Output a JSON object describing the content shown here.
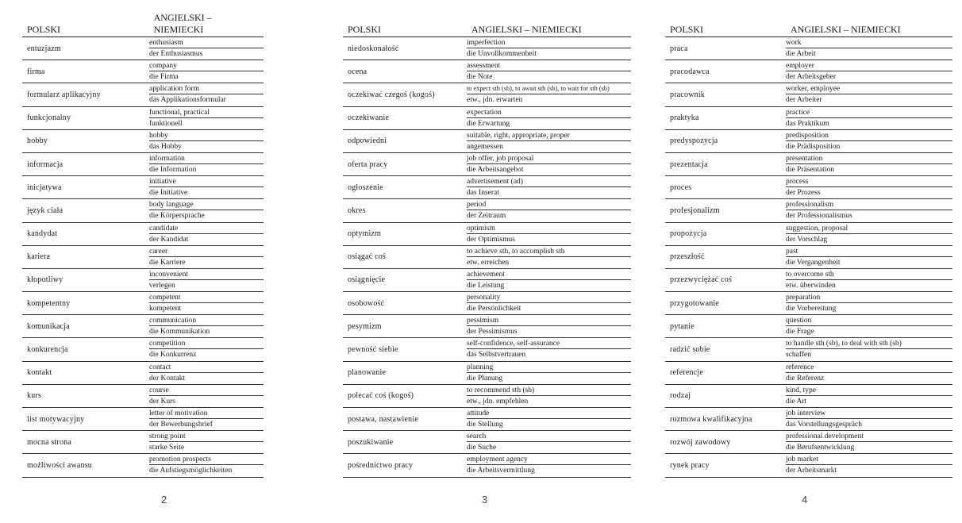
{
  "header": {
    "col1": "POLSKI",
    "col2": "ANGIELSKI – NIEMIECKI"
  },
  "pages": [
    {
      "number": "2",
      "entries": [
        [
          "entuzjazm",
          "enthusiasm",
          "der Enthusiasmus"
        ],
        [
          "firma",
          "company",
          "die Firma"
        ],
        [
          "formularz aplikacyjny",
          "application form",
          "das Applikationsformular"
        ],
        [
          "funkcjonalny",
          "functional, practical",
          "funktionell"
        ],
        [
          "hobby",
          "hobby",
          "das Hobby"
        ],
        [
          "informacja",
          "information",
          "die Information"
        ],
        [
          "inicjatywa",
          "initiative",
          "die Initiative"
        ],
        [
          "język ciała",
          "body language",
          "die Körpersprache"
        ],
        [
          "kandydat",
          "candidate",
          "der Kandidat"
        ],
        [
          "kariera",
          "career",
          "die Karriere"
        ],
        [
          "kłopotliwy",
          "inconvenient",
          "verlegen"
        ],
        [
          "kompetentny",
          "competent",
          "kompetent"
        ],
        [
          "komunikacja",
          "communication",
          "die Kommunikation"
        ],
        [
          "konkurencja",
          "competition",
          "die Konkurrenz"
        ],
        [
          "kontakt",
          "contact",
          "der Kontakt"
        ],
        [
          "kurs",
          "course",
          "der Kurs"
        ],
        [
          "list motywacyjny",
          "letter of motivation",
          "der Bewerbungsbrief"
        ],
        [
          "mocna strona",
          "strong point",
          "starke Seite"
        ],
        [
          "możliwości awansu",
          "promotion prospects",
          "die Aufstiegsmöglichkeiten"
        ]
      ]
    },
    {
      "number": "3",
      "entries": [
        [
          "niedoskonałość",
          "imperfection",
          "die Unvollkommenheit"
        ],
        [
          "ocena",
          "assessment",
          "die Note"
        ],
        [
          "oczekiwać czegoś (kogoś)",
          "to expect sth (sb), to await sth (sb), to wait for sth (sb)",
          "etw., jdn. erwarten"
        ],
        [
          "oczekiwanie",
          "expectation",
          "die Erwartung"
        ],
        [
          "odpowiedni",
          "suitable, right, appropriate, proper",
          "angemessen"
        ],
        [
          "oferta pracy",
          "job offer, job proposal",
          "die Arbeitsangebot"
        ],
        [
          "ogłoszenie",
          "advertisement (ad)",
          "das Inserat"
        ],
        [
          "okres",
          "period",
          "der Zeitraum"
        ],
        [
          "optymizm",
          "optimism",
          "der Optimismus"
        ],
        [
          "osiągać coś",
          "to achieve sth, to accomplish sth",
          "etw. erreichen"
        ],
        [
          "osiągnięcie",
          "achievement",
          "die Leistung"
        ],
        [
          "osobowość",
          "personality",
          "die Persönlichkeit"
        ],
        [
          "pesymizm",
          "pessimism",
          "der Pessimismus"
        ],
        [
          "pewność siebie",
          "self-confidence, self-assurance",
          "das Selbstvertrauen"
        ],
        [
          "planowanie",
          "planning",
          "die Planung"
        ],
        [
          "polecać coś (kogoś)",
          "to recommend sth (sb)",
          "etw., jdn. empfehlen"
        ],
        [
          "postawa, nastawienie",
          "attitude",
          "die Stellung"
        ],
        [
          "poszukiwanie",
          "search",
          "die Suche"
        ],
        [
          "pośrednictwo pracy",
          "employment agency",
          "die Arbeitsvermittlung"
        ]
      ]
    },
    {
      "number": "4",
      "entries": [
        [
          "praca",
          "work",
          "die Arbeit"
        ],
        [
          "pracodawca",
          "employer",
          "der Arbeitsgeber"
        ],
        [
          "pracownik",
          "worker, employee",
          "der Arbeiter"
        ],
        [
          "praktyka",
          "practice",
          "das Praktikum"
        ],
        [
          "predyspozycja",
          "predisposition",
          "die Prädisposition"
        ],
        [
          "prezentacja",
          "presentation",
          "die Präsentation"
        ],
        [
          "proces",
          "process",
          "der Prozess"
        ],
        [
          "profesjonalizm",
          "professionalism",
          "der Professionalismus"
        ],
        [
          "propozycja",
          "suggestion, proposal",
          "der Vorschlag"
        ],
        [
          "przeszłość",
          "past",
          "die Vergangenheit"
        ],
        [
          "przezwyciężać coś",
          "to overcome sth",
          "etw. überwinden"
        ],
        [
          "przygotowanie",
          "preparation",
          "die Vorbereitung"
        ],
        [
          "pytanie",
          "question",
          "die Frage"
        ],
        [
          "radzić sobie",
          "to handle sth (sb), to deal with sth (sb)",
          "schaffen"
        ],
        [
          "referencje",
          "reference",
          "die Referenz"
        ],
        [
          "rodzaj",
          "kind, type",
          "die Art"
        ],
        [
          "rozmowa kwalifikacyjna",
          "job interview",
          "das Vorstellungsgespräch"
        ],
        [
          "rozwój zawodowy",
          "professional development",
          "die Berufsentwicklung"
        ],
        [
          "rynek pracy",
          "job market",
          "der Arbeitsmarkt"
        ]
      ]
    }
  ]
}
